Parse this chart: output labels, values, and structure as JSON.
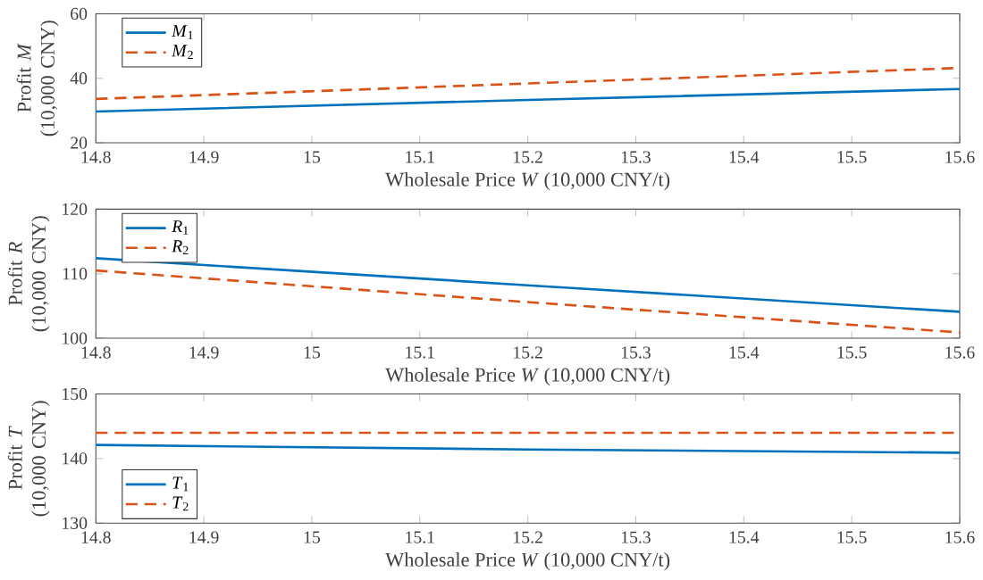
{
  "chart_data": [
    {
      "type": "line",
      "xlabel": "Wholesale Price *W* (10,000 CNY/t)",
      "ylabel": "Profit *M* (10,000 CNY)",
      "x": [
        14.8,
        15.2,
        15.6
      ],
      "xlim": [
        14.8,
        15.6
      ],
      "xticks": [
        14.8,
        14.9,
        15,
        15.1,
        15.2,
        15.3,
        15.4,
        15.5,
        15.6
      ],
      "ylim": [
        20,
        60
      ],
      "yticks": [
        20,
        40,
        60
      ],
      "legend": "top left",
      "grid": false,
      "series": [
        {
          "name": "*M*$_{1}$",
          "color": "#0072bd",
          "line_style": "solid",
          "values": [
            29.7,
            33.3,
            36.7
          ]
        },
        {
          "name": "*M*$_{2}$",
          "color": "#d95319",
          "line_style": "dashed",
          "values": [
            33.6,
            38.4,
            43.2
          ]
        }
      ]
    },
    {
      "type": "line",
      "xlabel": "Wholesale Price *W* (10,000 CNY/t)",
      "ylabel": "Profit *R* (10,000 CNY)",
      "x": [
        14.8,
        15.2,
        15.6
      ],
      "xlim": [
        14.8,
        15.6
      ],
      "xticks": [
        14.8,
        14.9,
        15,
        15.1,
        15.2,
        15.3,
        15.4,
        15.5,
        15.6
      ],
      "ylim": [
        100,
        120
      ],
      "yticks": [
        100,
        110,
        120
      ],
      "legend": "top left",
      "grid": false,
      "series": [
        {
          "name": "*R*$_{1}$",
          "color": "#0072bd",
          "line_style": "solid",
          "values": [
            112.4,
            108.2,
            104.1
          ]
        },
        {
          "name": "*R*$_{2}$",
          "color": "#d95319",
          "line_style": "dashed",
          "values": [
            110.5,
            105.6,
            100.9
          ]
        }
      ]
    },
    {
      "type": "line",
      "xlabel": "Wholesale Price *W* (10,000 CNY/t)",
      "ylabel": "Profit *T* (10,000 CNY)",
      "x": [
        14.8,
        15.2,
        15.6
      ],
      "xlim": [
        14.8,
        15.6
      ],
      "xticks": [
        14.8,
        14.9,
        15,
        15.1,
        15.2,
        15.3,
        15.4,
        15.5,
        15.6
      ],
      "ylim": [
        130,
        150
      ],
      "yticks": [
        130,
        140,
        150
      ],
      "legend": "bottom left",
      "grid": false,
      "series": [
        {
          "name": "*T*$_{1}$",
          "color": "#0072bd",
          "line_style": "solid",
          "values": [
            142.1,
            141.4,
            140.9
          ]
        },
        {
          "name": "*T*$_{2}$",
          "color": "#d95319",
          "line_style": "dashed",
          "values": [
            144,
            144,
            144
          ]
        }
      ]
    }
  ]
}
